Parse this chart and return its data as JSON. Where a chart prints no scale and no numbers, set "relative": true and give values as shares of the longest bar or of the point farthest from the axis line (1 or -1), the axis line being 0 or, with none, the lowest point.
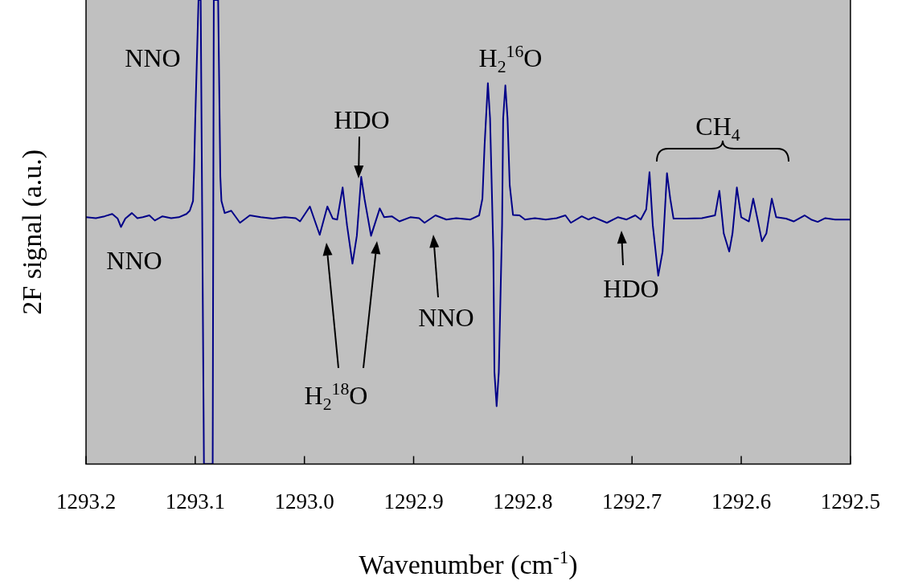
{
  "chart_data": {
    "type": "line",
    "xlabel": "Wavenumber (cm$^{-1}$)",
    "ylabel": "2F signal (a.u.)",
    "relative": true,
    "color": "#000088",
    "xlim": [
      1293.2,
      1292.5
    ],
    "xticks": [
      1293.2,
      1293.1,
      {
        "value": 1293,
        "label": "1293.0"
      },
      1292.9,
      1292.8,
      1292.7,
      1292.6,
      1292.5
    ],
    "x": [
      1293.2,
      1293.191,
      1293.183,
      1293.176,
      1293.171,
      1293.168,
      1293.164,
      1293.158,
      1293.153,
      1293.148,
      1293.142,
      1293.137,
      1293.13,
      1293.122,
      1293.115,
      1293.108,
      1293.105,
      1293.102,
      1293.101,
      1293.1,
      1293.097,
      1293.095,
      1293.092,
      1293.084,
      1293.083,
      1293.079,
      1293.077,
      1293.076,
      1293.073,
      1293.067,
      1293.059,
      1293.05,
      1293.04,
      1293.029,
      1293.018,
      1293.008,
      1293.004,
      1292.995,
      1292.986,
      1292.979,
      1292.974,
      1292.97,
      1292.965,
      1292.961,
      1292.956,
      1292.952,
      1292.948,
      1292.945,
      1292.939,
      1292.931,
      1292.927,
      1292.92,
      1292.913,
      1292.903,
      1292.895,
      1292.89,
      1292.88,
      1292.87,
      1292.861,
      1292.848,
      1292.84,
      1292.837,
      1292.835,
      1292.832,
      1292.83,
      1292.827,
      1292.826,
      1292.824,
      1292.822,
      1292.819,
      1292.818,
      1292.816,
      1292.814,
      1292.812,
      1292.809,
      1292.803,
      1292.798,
      1292.789,
      1292.779,
      1292.769,
      1292.761,
      1292.756,
      1292.746,
      1292.74,
      1292.735,
      1292.723,
      1292.713,
      1292.705,
      1292.697,
      1292.692,
      1292.687,
      1292.684,
      1292.681,
      1292.676,
      1292.672,
      1292.668,
      1292.665,
      1292.662,
      1292.65,
      1292.636,
      1292.624,
      1292.62,
      1292.616,
      1292.611,
      1292.608,
      1292.604,
      1292.6,
      1292.593,
      1292.589,
      1292.585,
      1292.581,
      1292.577,
      1292.572,
      1292.568,
      1292.559,
      1292.552,
      1292.542,
      1292.536,
      1292.53,
      1292.523,
      1292.514,
      1292.5
    ],
    "values": [
      0.532,
      0.53,
      0.534,
      0.539,
      0.529,
      0.511,
      0.529,
      0.541,
      0.53,
      0.532,
      0.536,
      0.525,
      0.534,
      0.53,
      0.532,
      0.539,
      0.546,
      0.567,
      0.636,
      0.74,
      1,
      1,
      0,
      0,
      1,
      1,
      0.619,
      0.567,
      0.541,
      0.546,
      0.52,
      0.536,
      0.532,
      0.529,
      0.532,
      0.53,
      0.523,
      0.555,
      0.494,
      0.555,
      0.529,
      0.527,
      0.596,
      0.515,
      0.432,
      0.492,
      0.619,
      0.572,
      0.492,
      0.551,
      0.532,
      0.534,
      0.523,
      0.532,
      0.53,
      0.52,
      0.536,
      0.527,
      0.53,
      0.527,
      0.536,
      0.572,
      0.688,
      0.821,
      0.745,
      0.458,
      0.198,
      0.125,
      0.198,
      0.515,
      0.745,
      0.816,
      0.745,
      0.601,
      0.537,
      0.536,
      0.527,
      0.53,
      0.527,
      0.53,
      0.536,
      0.52,
      0.534,
      0.527,
      0.532,
      0.52,
      0.532,
      0.527,
      0.536,
      0.527,
      0.549,
      0.629,
      0.515,
      0.406,
      0.458,
      0.627,
      0.572,
      0.529,
      0.529,
      0.53,
      0.536,
      0.589,
      0.497,
      0.458,
      0.497,
      0.596,
      0.532,
      0.523,
      0.572,
      0.527,
      0.48,
      0.497,
      0.572,
      0.532,
      0.529,
      0.523,
      0.536,
      0.527,
      0.522,
      0.53,
      0.527,
      0.527
    ],
    "annotations": [
      "NNO",
      "NNO",
      "HDO",
      "H$_{2}$$^{18}$O",
      "NNO",
      "H$_{2}$$^{16}$O",
      "HDO",
      "CH$_{4}$"
    ]
  }
}
